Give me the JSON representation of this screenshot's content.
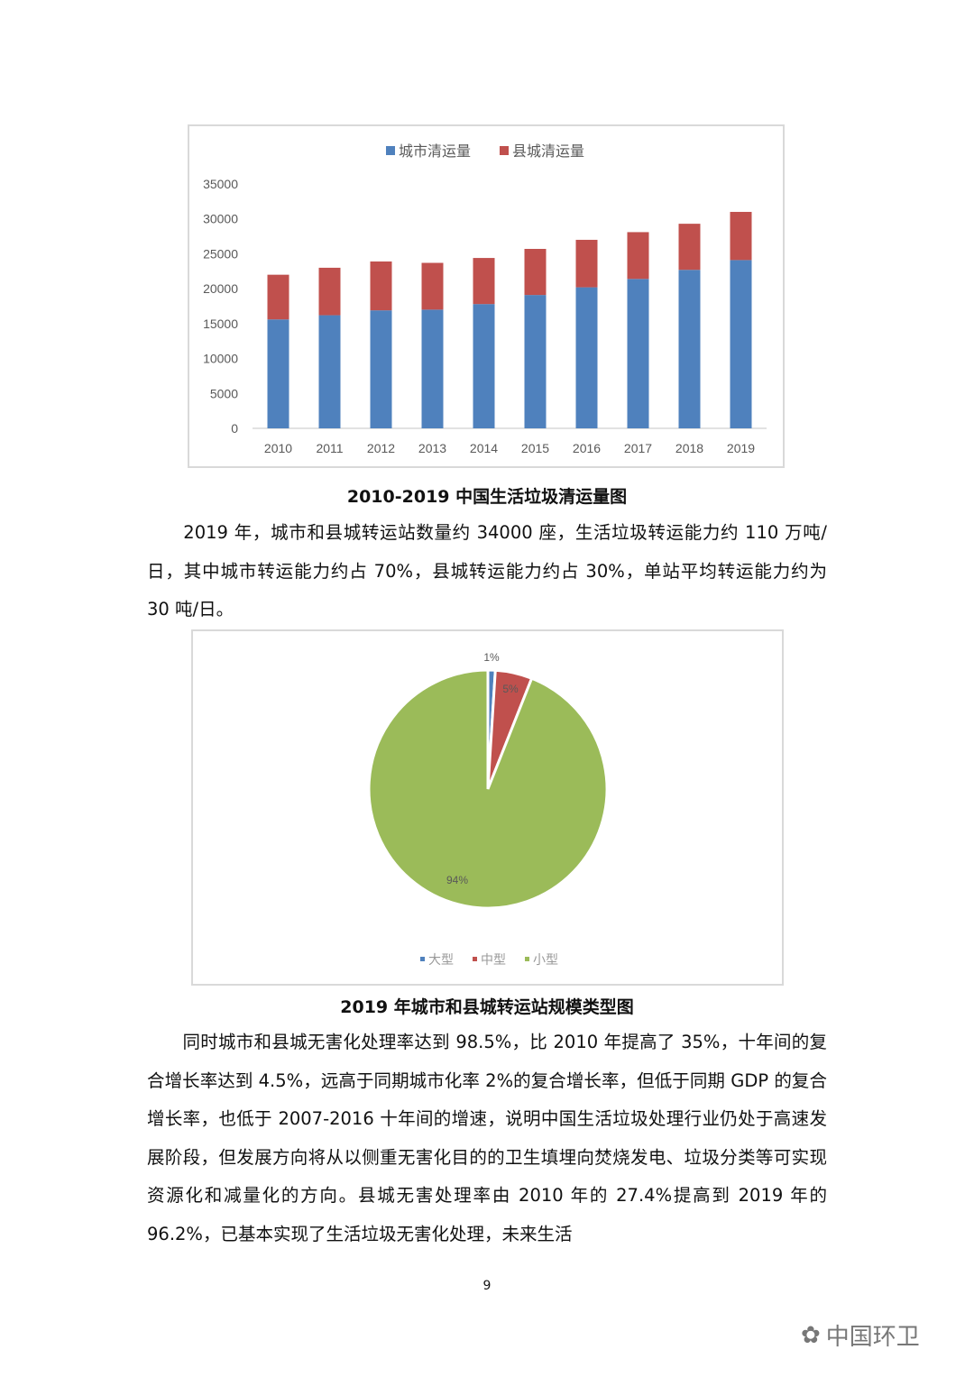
{
  "chart_data": [
    {
      "type": "bar",
      "stacked": true,
      "categories": [
        "2010",
        "2011",
        "2012",
        "2013",
        "2014",
        "2015",
        "2016",
        "2017",
        "2018",
        "2019"
      ],
      "series": [
        {
          "name": "城市清运量",
          "color": "#4f81bd",
          "values": [
            15600,
            16200,
            16900,
            17000,
            17800,
            19100,
            20200,
            21400,
            22700,
            24100
          ]
        },
        {
          "name": "县城清运量",
          "color": "#c0504d",
          "values": [
            6400,
            6800,
            7000,
            6700,
            6600,
            6600,
            6800,
            6700,
            6600,
            6900
          ]
        }
      ],
      "yticks": [
        "0",
        "5000",
        "10000",
        "15000",
        "20000",
        "25000",
        "30000",
        "35000"
      ],
      "ylim": [
        0,
        35000
      ],
      "legend": "top",
      "grid": false
    },
    {
      "type": "pie",
      "labels": [
        "大型",
        "中型",
        "小型"
      ],
      "values": [
        1,
        5,
        94
      ],
      "data_labels": [
        "1%",
        "5%",
        "94%"
      ],
      "colors": [
        "#4f81bd",
        "#c0504d",
        "#9bbb59"
      ],
      "legend": "bottom"
    }
  ],
  "captions": {
    "bar": "2010-2019 中国生活垃圾清运量图",
    "pie": "2019 年城市和县城转运站规模类型图"
  },
  "paragraphs": [
    "　　2019 年，城市和县城转运站数量约 34000 座，生活垃圾转运能力约 110 万吨/日，其中城市转运能力约占 70%，县城转运能力约占 30%，单站平均转运能力约为 30 吨/日。",
    "　　同时城市和县城无害化处理率达到 98.5%，比 2010 年提高了 35%，十年间的复合增长率达到 4.5%，远高于同期城市化率 2%的复合增长率，但低于同期 GDP 的复合增长率，也低于 2007-2016 十年间的增速，说明中国生活垃圾处理行业仍处于高速发展阶段，但发展方向将从以侧重无害化目的的卫生填埋向焚烧发电、垃圾分类等可实现资源化和减量化的方向。县城无害处理率由 2010 年的 27.4%提高到 2019 年的 96.2%，已基本实现了生活垃圾无害化处理，未来生活"
  ],
  "page_number": "9",
  "watermark": "中国环卫"
}
